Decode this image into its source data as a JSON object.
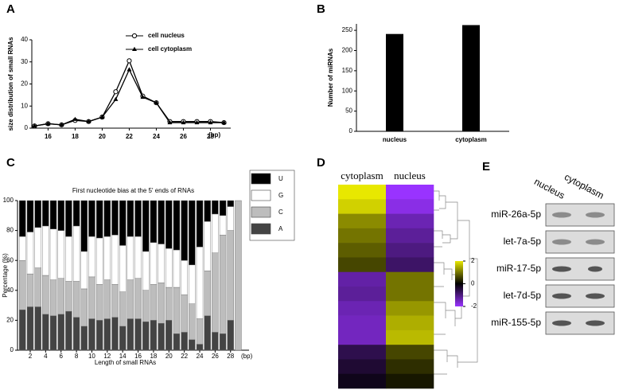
{
  "chart_data": [
    {
      "type": "line",
      "label": "A",
      "ylabel": "size distribution of small RNAs",
      "xunit": "(bp)",
      "x": [
        15,
        16,
        17,
        18,
        19,
        20,
        21,
        22,
        23,
        24,
        25,
        26,
        27,
        28,
        29
      ],
      "xlim": [
        14.8,
        29.5
      ],
      "xticks": [
        16,
        18,
        20,
        22,
        24,
        26,
        28
      ],
      "ylim": [
        0,
        40
      ],
      "yticks": [
        0,
        10,
        20,
        30,
        40
      ],
      "series": [
        {
          "name": "cell nucleus",
          "marker": "circle",
          "color": "#000000",
          "values": [
            1,
            2,
            1.5,
            3.5,
            3,
            5,
            16.5,
            30.5,
            14.5,
            11.5,
            3,
            3,
            3,
            3,
            2.5
          ]
        },
        {
          "name": "cell cytoplasm",
          "marker": "triangle",
          "color": "#000000",
          "values": [
            1,
            2,
            1.5,
            4,
            3,
            5,
            13,
            26.5,
            14,
            11.5,
            2.5,
            2.5,
            2.5,
            2.5,
            2.5
          ]
        }
      ]
    },
    {
      "type": "bar",
      "label": "B",
      "ylabel": "Number of miRNAs",
      "categories": [
        "nucleus",
        "cytoplasm"
      ],
      "values": [
        241,
        263
      ],
      "color": "#000000",
      "ylim": [
        0,
        266
      ],
      "yticks": [
        0,
        50,
        100,
        150,
        200,
        250
      ]
    },
    {
      "type": "stacked_bar",
      "label": "C",
      "title": "First nucleotide bias at the 5' ends of RNAs",
      "ylabel": "Percentage (%)",
      "xlabel": "Length of small RNAs",
      "xunit": "(bp)",
      "x": [
        1,
        2,
        3,
        4,
        5,
        6,
        7,
        8,
        9,
        10,
        11,
        12,
        13,
        14,
        15,
        16,
        17,
        18,
        19,
        20,
        21,
        22,
        23,
        24,
        25,
        26,
        27,
        28,
        29
      ],
      "xlim": [
        0.35,
        30.4
      ],
      "xticks": [
        2,
        4,
        6,
        8,
        10,
        12,
        14,
        16,
        18,
        20,
        22,
        24,
        26,
        28
      ],
      "ylim": [
        0,
        100
      ],
      "yticks": [
        0,
        20,
        40,
        60,
        80,
        100
      ],
      "series": [
        {
          "name": "U",
          "color": "#000000",
          "values": [
            24,
            21,
            18,
            17,
            19,
            20,
            24,
            17,
            34,
            24,
            25,
            24,
            23,
            30,
            24,
            24,
            34,
            28,
            29,
            32,
            33,
            40,
            43,
            31,
            14,
            9,
            10,
            4,
            0
          ]
        },
        {
          "name": "G",
          "color": "#ffffff",
          "values": [
            16,
            28,
            27,
            33,
            34,
            32,
            30,
            37,
            25,
            27,
            31,
            29,
            33,
            31,
            29,
            28,
            26,
            28,
            26,
            26,
            25,
            23,
            26,
            48,
            33,
            26,
            13,
            16,
            0
          ]
        },
        {
          "name": "C",
          "color": "#bdbdbd",
          "values": [
            33,
            22,
            26,
            26,
            24,
            24,
            20,
            24,
            25,
            28,
            24,
            26,
            22,
            23,
            26,
            27,
            21,
            24,
            27,
            22,
            31,
            25,
            24,
            17,
            30,
            53,
            66,
            60,
            100
          ]
        },
        {
          "name": "A",
          "color": "#444444",
          "values": [
            27,
            29,
            29,
            24,
            23,
            24,
            26,
            22,
            16,
            21,
            20,
            21,
            22,
            16,
            21,
            21,
            19,
            20,
            18,
            20,
            11,
            12,
            7,
            4,
            23,
            12,
            11,
            20,
            0
          ]
        }
      ]
    },
    {
      "type": "heatmap",
      "label": "D",
      "columns": [
        "cytoplasm",
        "nucleus"
      ],
      "clim": [
        -2,
        2
      ],
      "cticks": [
        2,
        0,
        -2
      ],
      "rows": [
        [
          2,
          -2
        ],
        [
          1.8,
          -1.8
        ],
        [
          1.2,
          -1.4
        ],
        [
          1,
          -1.2
        ],
        [
          0.8,
          -1
        ],
        [
          0.6,
          -0.8
        ],
        [
          -1.3,
          1
        ],
        [
          -1.2,
          1
        ],
        [
          -1.4,
          1.3
        ],
        [
          -1.5,
          1.5
        ],
        [
          -1.5,
          1.6
        ],
        [
          -0.6,
          0.6
        ],
        [
          -0.4,
          0.4
        ],
        [
          -0.2,
          0.2
        ]
      ]
    }
  ],
  "blot": {
    "label": "E",
    "columns": [
      "nucleus",
      "cytoplasm"
    ],
    "rows": [
      "miR-26a-5p",
      "let-7a-5p",
      "miR-17-5p",
      "let-7d-5p",
      "miR-155-5p"
    ]
  }
}
